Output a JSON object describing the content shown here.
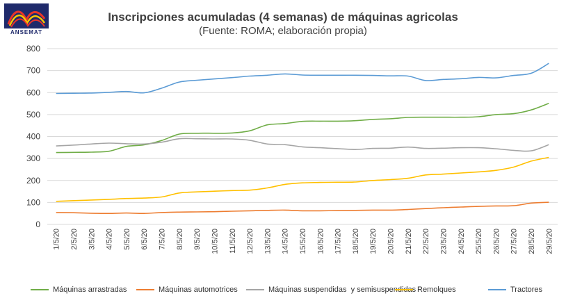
{
  "logo": {
    "text": "ANSEMAT",
    "colors": [
      "#1f2a6b",
      "#e8342a",
      "#f7c600"
    ]
  },
  "chart_data": {
    "type": "line",
    "title": "Inscripciones acumuladas (4 semanas) de máquinas agricolas",
    "subtitle": "(Fuente: ROMA; elaboración propia)",
    "xlabel": "",
    "ylabel": "",
    "ylim": [
      0,
      800
    ],
    "yticks": [
      "0",
      "100",
      "200",
      "300",
      "400",
      "500",
      "600",
      "700",
      "800"
    ],
    "grid": true,
    "legend_position": "bottom",
    "categories": [
      "1/5/20",
      "2/5/20",
      "3/5/20",
      "4/5/20",
      "5/5/20",
      "6/5/20",
      "7/5/20",
      "8/5/20",
      "9/5/20",
      "10/5/20",
      "11/5/20",
      "12/5/20",
      "13/5/20",
      "14/5/20",
      "15/5/20",
      "16/5/20",
      "17/5/20",
      "18/5/20",
      "19/5/20",
      "20/5/20",
      "21/5/20",
      "22/5/20",
      "23/5/20",
      "24/5/20",
      "25/5/20",
      "26/5/20",
      "27/5/20",
      "28/5/20",
      "29/5/20"
    ],
    "series": [
      {
        "name": "Máquinas arrastradas",
        "color": "#70ad47",
        "values": [
          327,
          328,
          329,
          333,
          355,
          362,
          382,
          411,
          415,
          415,
          416,
          426,
          453,
          459,
          469,
          470,
          470,
          472,
          478,
          481,
          487,
          488,
          488,
          488,
          490,
          500,
          504,
          521,
          551
        ]
      },
      {
        "name": "Máquinas automotrices",
        "color": "#ed7d31",
        "values": [
          54,
          53,
          51,
          50,
          52,
          50,
          54,
          56,
          57,
          58,
          60,
          62,
          64,
          65,
          62,
          62,
          63,
          64,
          65,
          65,
          68,
          72,
          76,
          79,
          82,
          84,
          85,
          97,
          101
        ]
      },
      {
        "name": "Máquinas suspendidas  y semisuspendidas",
        "color": "#a5a5a5",
        "values": [
          357,
          361,
          366,
          370,
          367,
          366,
          374,
          390,
          390,
          389,
          389,
          383,
          366,
          363,
          353,
          349,
          345,
          341,
          346,
          347,
          352,
          346,
          347,
          349,
          349,
          344,
          337,
          335,
          363
        ]
      },
      {
        "name": "Remolques",
        "color": "#ffc000",
        "values": [
          105,
          108,
          111,
          114,
          118,
          120,
          125,
          143,
          148,
          151,
          154,
          156,
          166,
          182,
          189,
          191,
          192,
          193,
          200,
          204,
          210,
          225,
          229,
          234,
          239,
          246,
          261,
          288,
          305
        ]
      },
      {
        "name": "Tractores",
        "color": "#5b9bd5",
        "values": [
          596,
          597,
          598,
          601,
          605,
          599,
          620,
          648,
          656,
          662,
          668,
          675,
          679,
          685,
          680,
          679,
          679,
          679,
          678,
          676,
          675,
          655,
          660,
          663,
          669,
          667,
          678,
          688,
          733
        ]
      }
    ]
  }
}
